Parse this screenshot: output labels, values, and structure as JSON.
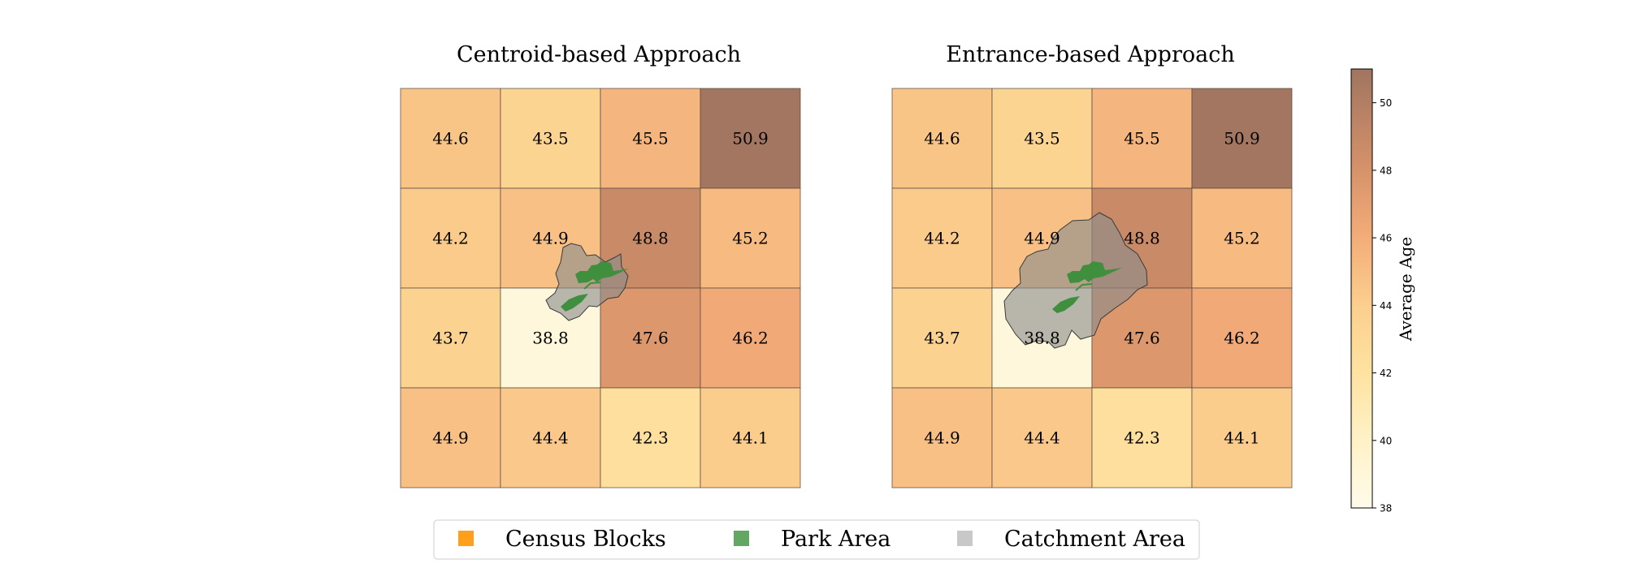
{
  "chart_data": {
    "type": "heatmap",
    "panels": [
      {
        "title": "Centroid-based Approach",
        "values": [
          [
            44.6,
            43.5,
            45.5,
            50.9
          ],
          [
            44.2,
            44.9,
            48.8,
            45.2
          ],
          [
            43.7,
            38.8,
            47.6,
            46.2
          ],
          [
            44.9,
            44.4,
            42.3,
            44.1
          ]
        ],
        "catchment": "small"
      },
      {
        "title": "Entrance-based Approach",
        "values": [
          [
            44.6,
            43.5,
            45.5,
            50.9
          ],
          [
            44.2,
            44.9,
            48.8,
            45.2
          ],
          [
            43.7,
            38.8,
            47.6,
            46.2
          ],
          [
            44.9,
            44.4,
            42.3,
            44.1
          ]
        ],
        "catchment": "large"
      }
    ],
    "colorbar": {
      "label": "Average Age",
      "range": [
        38,
        51
      ],
      "ticks": [
        "38",
        "40",
        "42",
        "44",
        "46",
        "48",
        "50"
      ],
      "colormap": "YlOrBr-light"
    },
    "legend": {
      "placement": "bottom-center",
      "items": [
        {
          "label": "Census Blocks",
          "color": "#ff9f1a"
        },
        {
          "label": "Park Area",
          "color": "#62a862"
        },
        {
          "label": "Catchment Area",
          "color": "#c8c8c8"
        }
      ]
    },
    "colors": {
      "park": "#3f8f3f",
      "catchment": "#8c8c8c",
      "grid_edge": "#5a4a40"
    }
  }
}
